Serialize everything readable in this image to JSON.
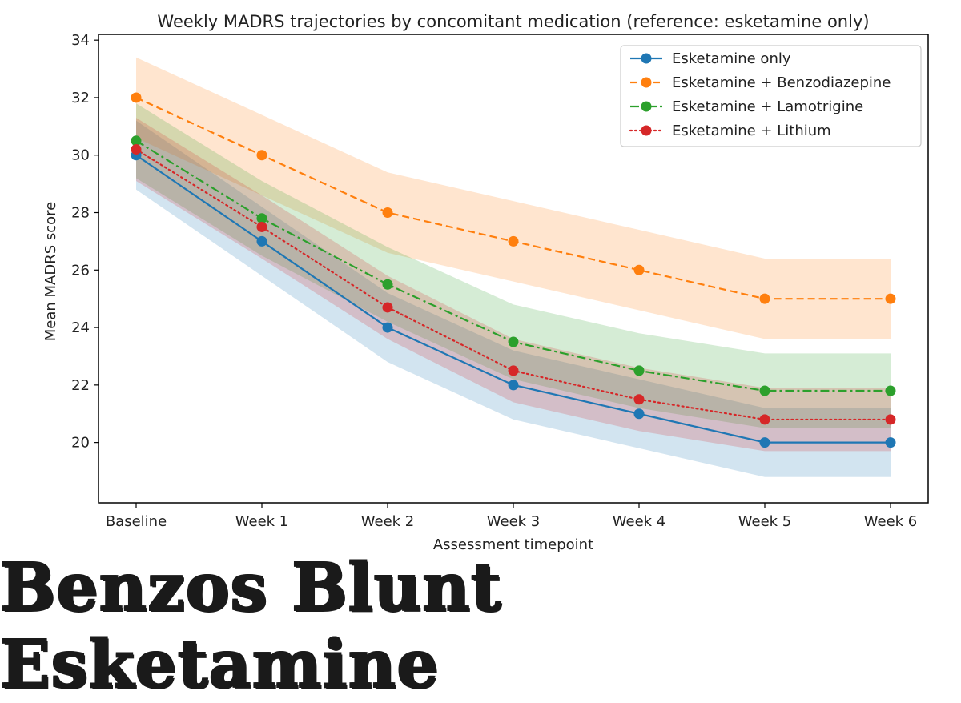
{
  "headline": "Benzos Blunt Esketamine",
  "chart_data": {
    "type": "line",
    "title": "Weekly MADRS trajectories by concomitant medication (reference: esketamine only)",
    "xlabel": "Assessment timepoint",
    "ylabel": "Mean MADRS score",
    "categories": [
      "Baseline",
      "Week 1",
      "Week 2",
      "Week 3",
      "Week 4",
      "Week 5",
      "Week 6"
    ],
    "ylim": [
      17.9,
      34.2
    ],
    "yticks": [
      20,
      22,
      24,
      26,
      28,
      30,
      32,
      34
    ],
    "grid": false,
    "legend_position": "top-right",
    "series": [
      {
        "name": "Esketamine only",
        "color": "#1f77b4",
        "linestyle": "solid",
        "values": [
          30,
          27,
          24,
          22,
          21,
          20,
          20
        ],
        "lower": [
          28.8,
          25.8,
          22.8,
          20.8,
          19.8,
          18.8,
          18.8
        ],
        "upper": [
          31.2,
          28.2,
          25.2,
          23.2,
          22.2,
          21.2,
          21.2
        ]
      },
      {
        "name": "Esketamine + Benzodiazepine",
        "color": "#ff7f0e",
        "linestyle": "dashed",
        "values": [
          32,
          30,
          28,
          27,
          26,
          25,
          25
        ],
        "lower": [
          30.6,
          28.6,
          26.6,
          25.6,
          24.6,
          23.6,
          23.6
        ],
        "upper": [
          33.4,
          31.4,
          29.4,
          28.4,
          27.4,
          26.4,
          26.4
        ]
      },
      {
        "name": "Esketamine + Lamotrigine",
        "color": "#2ca02c",
        "linestyle": "dashdot",
        "values": [
          30.5,
          27.8,
          25.5,
          23.5,
          22.5,
          21.8,
          21.8
        ],
        "lower": [
          29.2,
          26.5,
          24.2,
          22.2,
          21.2,
          20.5,
          20.5
        ],
        "upper": [
          31.8,
          29.1,
          26.8,
          24.8,
          23.8,
          23.1,
          23.1
        ]
      },
      {
        "name": "Esketamine + Lithium",
        "color": "#d62728",
        "linestyle": "dotted",
        "values": [
          30.2,
          27.5,
          24.7,
          22.5,
          21.5,
          20.8,
          20.8
        ],
        "lower": [
          29.1,
          26.4,
          23.6,
          21.4,
          20.4,
          19.7,
          19.7
        ],
        "upper": [
          31.3,
          28.6,
          25.8,
          23.6,
          22.6,
          21.9,
          21.9
        ]
      }
    ]
  }
}
